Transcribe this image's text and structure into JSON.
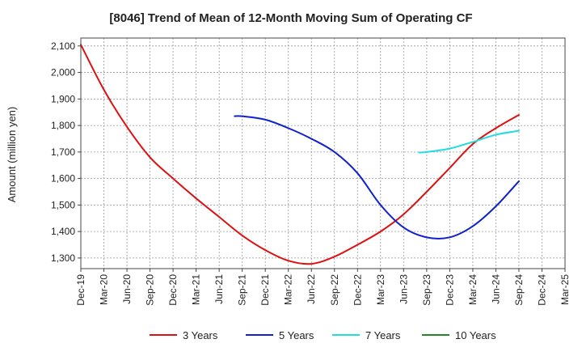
{
  "chart_data": {
    "type": "line",
    "title": "[8046]  Trend of Mean of 12-Month Moving Sum of Operating CF",
    "ylabel": "Amount (million yen)",
    "xlabel": "",
    "ylim": [
      1260,
      2130
    ],
    "yticks": [
      1300,
      1400,
      1500,
      1600,
      1700,
      1800,
      1900,
      2000,
      2100
    ],
    "ytick_labels": [
      "1,300",
      "1,400",
      "1,500",
      "1,600",
      "1,700",
      "1,800",
      "1,900",
      "2,000",
      "2,100"
    ],
    "x_categories": [
      "Dec-19",
      "Mar-20",
      "Jun-20",
      "Sep-20",
      "Dec-20",
      "Mar-21",
      "Jun-21",
      "Sep-21",
      "Dec-21",
      "Mar-22",
      "Jun-22",
      "Sep-22",
      "Dec-22",
      "Mar-23",
      "Jun-23",
      "Sep-23",
      "Dec-23",
      "Mar-24",
      "Jun-24",
      "Sep-24",
      "Dec-24",
      "Mar-25"
    ],
    "grid": true,
    "legend_position": "bottom",
    "series": [
      {
        "name": "3 Years",
        "color": "#dd1111",
        "x": [
          0,
          1,
          2,
          3,
          4,
          5,
          6,
          7,
          8,
          9,
          10,
          11,
          12,
          13,
          14,
          15,
          16,
          17,
          18,
          19
        ],
        "values": [
          2105,
          1935,
          1795,
          1680,
          1600,
          1525,
          1455,
          1385,
          1330,
          1290,
          1278,
          1305,
          1350,
          1400,
          1465,
          1550,
          1640,
          1730,
          1790,
          1840
        ]
      },
      {
        "name": "5 Years",
        "color": "#1122cc",
        "x": [
          6.67,
          7,
          8,
          9,
          10,
          11,
          12,
          13,
          14,
          15,
          16,
          17,
          18,
          19
        ],
        "values": [
          1835,
          1835,
          1822,
          1790,
          1750,
          1700,
          1620,
          1500,
          1415,
          1378,
          1378,
          1420,
          1495,
          1590
        ]
      },
      {
        "name": "7 Years",
        "color": "#22dddd",
        "x": [
          14.67,
          15,
          16,
          17,
          18,
          19
        ],
        "values": [
          1698,
          1700,
          1713,
          1738,
          1765,
          1780
        ]
      },
      {
        "name": "10 Years",
        "color": "#228822",
        "x": [],
        "values": []
      }
    ]
  }
}
